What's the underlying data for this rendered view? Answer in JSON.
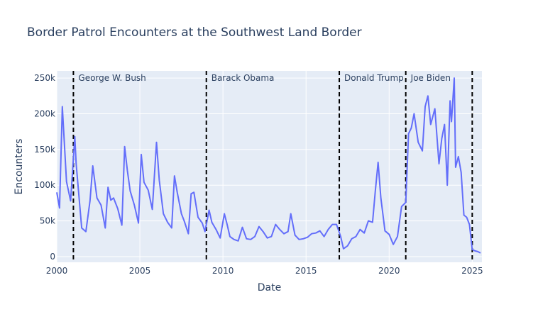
{
  "chart_data": {
    "type": "line",
    "title": "Border Patrol Encounters at the Southwest Land Border",
    "xlabel": "Date",
    "ylabel": "Encounters",
    "x_range": [
      "2000-01",
      "2025-08"
    ],
    "ylim": [
      -8000,
      260000
    ],
    "x_ticks": [
      {
        "date": "2000-01",
        "label": "2000"
      },
      {
        "date": "2005-01",
        "label": "2005"
      },
      {
        "date": "2010-01",
        "label": "2010"
      },
      {
        "date": "2015-01",
        "label": "2015"
      },
      {
        "date": "2020-01",
        "label": "2020"
      },
      {
        "date": "2025-01",
        "label": "2025"
      }
    ],
    "y_ticks": [
      {
        "value": 0,
        "label": "0"
      },
      {
        "value": 50000,
        "label": "50k"
      },
      {
        "value": 100000,
        "label": "100k"
      },
      {
        "value": 150000,
        "label": "150k"
      },
      {
        "value": 200000,
        "label": "200k"
      },
      {
        "value": 250000,
        "label": "250k"
      }
    ],
    "grid": true,
    "line_color": "#636efa",
    "plot_bg": "#e5ecf6",
    "series": [
      {
        "x": [
          "2000-01",
          "2000-03",
          "2000-05",
          "2000-08",
          "2000-11",
          "2001-02",
          "2001-03",
          "2001-05",
          "2001-07",
          "2001-10",
          "2002-01",
          "2002-03",
          "2002-06",
          "2002-09",
          "2002-12",
          "2003-02",
          "2003-04",
          "2003-06",
          "2003-09",
          "2003-12",
          "2004-02",
          "2004-04",
          "2004-06",
          "2004-09",
          "2004-12",
          "2005-02",
          "2005-04",
          "2005-07",
          "2005-10",
          "2006-01",
          "2006-03",
          "2006-06",
          "2006-09",
          "2006-12",
          "2007-02",
          "2007-04",
          "2007-07",
          "2007-09",
          "2007-12",
          "2008-02",
          "2008-04",
          "2008-07",
          "2008-10",
          "2008-12",
          "2009-03",
          "2009-05",
          "2009-08",
          "2009-11",
          "2010-02",
          "2010-04",
          "2010-06",
          "2010-09",
          "2010-12",
          "2011-03",
          "2011-06",
          "2011-09",
          "2011-12",
          "2012-03",
          "2012-06",
          "2012-09",
          "2012-12",
          "2013-03",
          "2013-06",
          "2013-09",
          "2013-12",
          "2014-02",
          "2014-05",
          "2014-08",
          "2014-11",
          "2015-02",
          "2015-05",
          "2015-08",
          "2015-11",
          "2016-02",
          "2016-05",
          "2016-08",
          "2016-11",
          "2017-02",
          "2017-04",
          "2017-07",
          "2017-10",
          "2018-01",
          "2018-04",
          "2018-07",
          "2018-10",
          "2019-01",
          "2019-03",
          "2019-05",
          "2019-07",
          "2019-10",
          "2020-01",
          "2020-04",
          "2020-07",
          "2020-10",
          "2021-01",
          "2021-03",
          "2021-05",
          "2021-07",
          "2021-10",
          "2022-01",
          "2022-03",
          "2022-05",
          "2022-07",
          "2022-10",
          "2023-01",
          "2023-03",
          "2023-05",
          "2023-07",
          "2023-09",
          "2023-10",
          "2023-12",
          "2024-01",
          "2024-03",
          "2024-05",
          "2024-07",
          "2024-09",
          "2024-11",
          "2025-01",
          "2025-03",
          "2025-05",
          "2025-07"
        ],
        "y": [
          90000,
          68000,
          210000,
          105000,
          78000,
          168000,
          130000,
          85000,
          40000,
          35000,
          78000,
          127000,
          82000,
          72000,
          40000,
          97000,
          79000,
          82000,
          67000,
          44000,
          154000,
          120000,
          92000,
          72000,
          47000,
          143000,
          104000,
          93000,
          66000,
          160000,
          107000,
          60000,
          48000,
          40000,
          113000,
          90000,
          60000,
          50000,
          32000,
          88000,
          90000,
          55000,
          47000,
          35000,
          65000,
          48000,
          38000,
          26000,
          60000,
          45000,
          28000,
          24000,
          22000,
          41000,
          25000,
          24000,
          28000,
          42000,
          35000,
          26000,
          28000,
          45000,
          38000,
          32000,
          35000,
          60000,
          30000,
          24000,
          25000,
          27000,
          32000,
          33000,
          36000,
          28000,
          38000,
          45000,
          45000,
          28000,
          11000,
          15000,
          25000,
          28000,
          38000,
          33000,
          50000,
          48000,
          92000,
          132000,
          82000,
          36000,
          31000,
          17000,
          28000,
          70000,
          76000,
          172000,
          180000,
          200000,
          160000,
          148000,
          210000,
          225000,
          185000,
          207000,
          130000,
          165000,
          185000,
          100000,
          218000,
          189000,
          250000,
          125000,
          140000,
          118000,
          58000,
          55000,
          45000,
          10000,
          8000,
          7000,
          5000
        ],
        "color": "#636efa"
      }
    ],
    "annotations": [
      {
        "date": "2001-01",
        "label": "George W. Bush"
      },
      {
        "date": "2009-01",
        "label": "Barack Obama"
      },
      {
        "date": "2017-01",
        "label": "Donald Trump"
      },
      {
        "date": "2021-01",
        "label": "Joe Biden"
      },
      {
        "date": "2025-01",
        "label": ""
      }
    ]
  }
}
